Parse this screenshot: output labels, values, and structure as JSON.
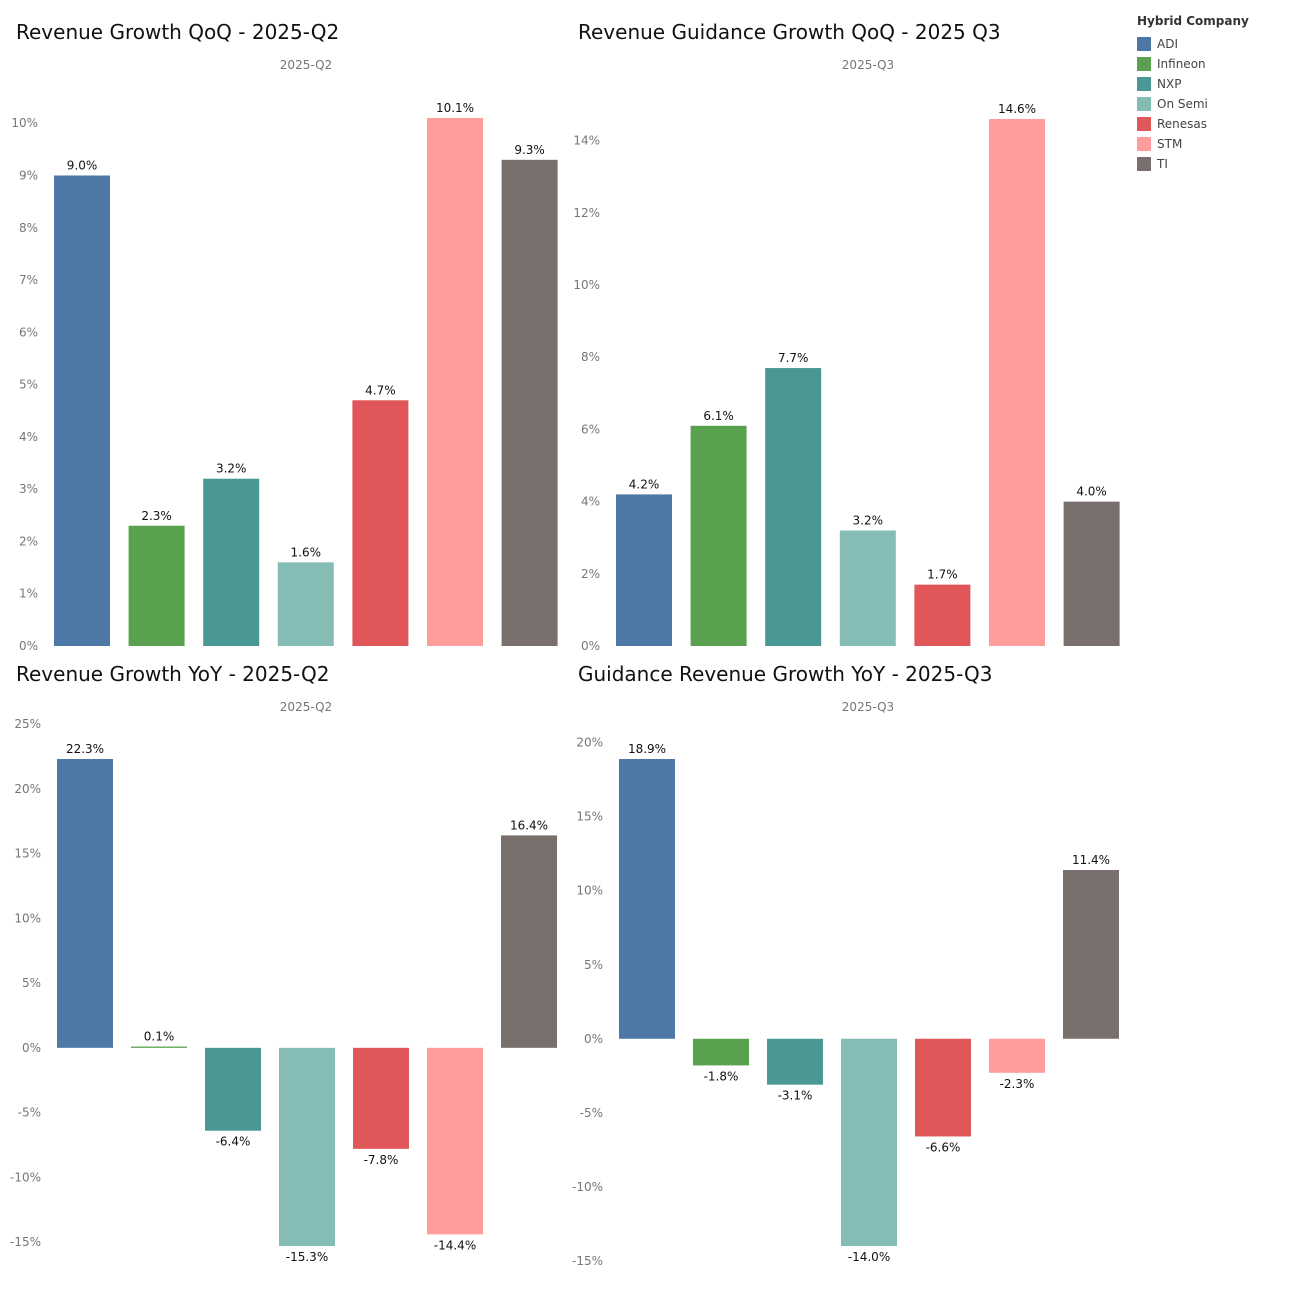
{
  "colors": {
    "ADI": "#4e79a7",
    "Infineon": "#59a14f",
    "NXP": "#499894",
    "On Semi": "#86bcb6",
    "Renesas": "#e15759",
    "STM": "#ff9d9a",
    "TI": "#79706e"
  },
  "legend": {
    "title": "Hybrid Company",
    "items": [
      "ADI",
      "Infineon",
      "NXP",
      "On Semi",
      "Renesas",
      "STM",
      "TI"
    ]
  },
  "chart_data": [
    {
      "type": "bar",
      "title": "Revenue Growth QoQ - 2025-Q2",
      "subtitle": "2025-Q2",
      "categories": [
        "ADI",
        "Infineon",
        "NXP",
        "On Semi",
        "Renesas",
        "STM",
        "TI"
      ],
      "values": [
        9.0,
        2.3,
        3.2,
        1.6,
        4.7,
        10.1,
        9.3
      ],
      "labels": [
        "9.0%",
        "2.3%",
        "3.2%",
        "1.6%",
        "4.7%",
        "10.1%",
        "9.3%"
      ],
      "ylim": [
        0,
        10.1
      ],
      "ticks": [
        0,
        1,
        2,
        3,
        4,
        5,
        6,
        7,
        8,
        9,
        10
      ],
      "tick_labels": [
        "0%",
        "1%",
        "2%",
        "3%",
        "4%",
        "5%",
        "6%",
        "7%",
        "8%",
        "9%",
        "10%"
      ],
      "xlabel": "",
      "ylabel": "",
      "grid": false
    },
    {
      "type": "bar",
      "title": "Revenue Guidance Growth QoQ - 2025 Q3",
      "subtitle": "2025-Q3",
      "categories": [
        "ADI",
        "Infineon",
        "NXP",
        "On Semi",
        "Renesas",
        "STM",
        "TI"
      ],
      "values": [
        4.2,
        6.1,
        7.7,
        3.2,
        1.7,
        14.6,
        4.0
      ],
      "labels": [
        "4.2%",
        "6.1%",
        "7.7%",
        "3.2%",
        "1.7%",
        "14.6%",
        "4.0%"
      ],
      "ylim": [
        0,
        14.6
      ],
      "ticks": [
        0,
        2,
        4,
        6,
        8,
        10,
        12,
        14
      ],
      "tick_labels": [
        "0%",
        "2%",
        "4%",
        "6%",
        "8%",
        "10%",
        "12%",
        "14%"
      ],
      "xlabel": "",
      "ylabel": "",
      "grid": false
    },
    {
      "type": "bar",
      "title": "Revenue Growth YoY - 2025-Q2",
      "subtitle": "2025-Q2",
      "categories": [
        "ADI",
        "Infineon",
        "NXP",
        "On Semi",
        "Renesas",
        "STM",
        "TI"
      ],
      "values": [
        22.3,
        0.1,
        -6.4,
        -15.3,
        -7.8,
        -14.4,
        16.4
      ],
      "labels": [
        "22.3%",
        "0.1%",
        "-6.4%",
        "-15.3%",
        "-7.8%",
        "-14.4%",
        "16.4%"
      ],
      "ylim": [
        -15.3,
        22.3
      ],
      "ticks": [
        -15,
        -10,
        -5,
        0,
        5,
        10,
        15,
        20,
        25
      ],
      "tick_labels": [
        "-15%",
        "-10%",
        "-5%",
        "0%",
        "5%",
        "10%",
        "15%",
        "20%",
        "25%"
      ],
      "xlabel": "",
      "ylabel": "",
      "grid": false
    },
    {
      "type": "bar",
      "title": "Guidance Revenue Growth YoY - 2025-Q3",
      "subtitle": "2025-Q3",
      "categories": [
        "ADI",
        "Infineon",
        "NXP",
        "On Semi",
        "Renesas",
        "STM",
        "TI"
      ],
      "values": [
        18.9,
        -1.8,
        -3.1,
        -14.0,
        -6.6,
        -2.3,
        11.4
      ],
      "labels": [
        "18.9%",
        "-1.8%",
        "-3.1%",
        "-14.0%",
        "-6.6%",
        "-2.3%",
        "11.4%"
      ],
      "ylim": [
        -14.0,
        18.9
      ],
      "ticks": [
        -15,
        -10,
        -5,
        0,
        5,
        10,
        15,
        20
      ],
      "tick_labels": [
        "-15%",
        "-10%",
        "-5%",
        "0%",
        "5%",
        "10%",
        "15%",
        "20%"
      ],
      "xlabel": "",
      "ylabel": "",
      "grid": false
    }
  ]
}
